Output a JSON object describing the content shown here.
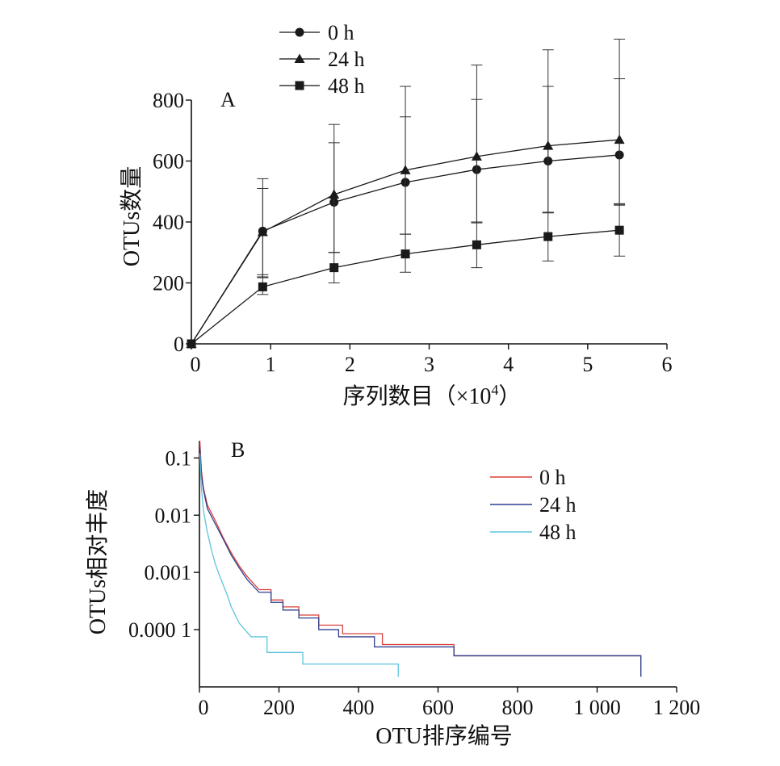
{
  "figure": {
    "panel_a_label": "A",
    "panel_b_label": "B"
  },
  "chart_data": [
    {
      "type": "line",
      "panel": "A",
      "xlabel": "序列数目（×10⁴）",
      "xlabel_parts": {
        "main": "序列数目（×10",
        "sup": "4",
        "end": "）"
      },
      "ylabel": "OTUs数量",
      "xlim": [
        0,
        6
      ],
      "ylim": [
        0,
        800
      ],
      "x_ticks": [
        0,
        1,
        2,
        3,
        4,
        5,
        6
      ],
      "x_tick_labels": [
        "0",
        "1",
        "2",
        "3",
        "4",
        "5",
        "6"
      ],
      "y_ticks": [
        0,
        200,
        400,
        600,
        800
      ],
      "y_tick_labels": [
        "0",
        "200",
        "400",
        "600",
        "800"
      ],
      "grid": false,
      "legend_position": "top-left-outside",
      "x": [
        0,
        0.9,
        1.8,
        2.7,
        3.6,
        4.5,
        5.4
      ],
      "series": [
        {
          "name": "0 h",
          "marker": "circle",
          "color": "#1a1a1a",
          "values": [
            0,
            370,
            465,
            530,
            572,
            600,
            620
          ],
          "err_low": [
            0,
            150,
            165,
            170,
            175,
            170,
            165
          ],
          "err_high": [
            0,
            140,
            195,
            215,
            230,
            245,
            250
          ]
        },
        {
          "name": "24 h",
          "marker": "triangle",
          "color": "#1a1a1a",
          "values": [
            0,
            367,
            490,
            570,
            615,
            650,
            670
          ],
          "err_low": [
            0,
            150,
            190,
            210,
            215,
            220,
            210
          ],
          "err_high": [
            0,
            175,
            230,
            275,
            300,
            315,
            330
          ]
        },
        {
          "name": "48 h",
          "marker": "square",
          "color": "#1a1a1a",
          "values": [
            0,
            187,
            250,
            295,
            325,
            352,
            373
          ],
          "err_low": [
            0,
            25,
            50,
            60,
            75,
            80,
            85
          ],
          "err_high": [
            0,
            40,
            50,
            65,
            75,
            80,
            85
          ]
        }
      ]
    },
    {
      "type": "line",
      "panel": "B",
      "xlabel": "OTU排序编号",
      "ylabel": "OTUs相对丰度",
      "xlim": [
        0,
        1200
      ],
      "ylim": [
        1e-05,
        0.2
      ],
      "y_scale": "log",
      "x_ticks": [
        0,
        200,
        400,
        600,
        800,
        1000,
        1200
      ],
      "x_tick_labels": [
        "0",
        "200",
        "400",
        "600",
        "800",
        "1 000",
        "1 200"
      ],
      "y_ticks": [
        0.1,
        0.01,
        0.001,
        0.0001
      ],
      "y_tick_labels": [
        "0.1",
        "0.01",
        "0.001",
        "0.000 1"
      ],
      "grid": false,
      "legend_position": "top-right",
      "series": [
        {
          "name": "0 h",
          "color": "#d9403a",
          "points": [
            [
              1,
              0.2
            ],
            [
              5,
              0.06
            ],
            [
              10,
              0.03
            ],
            [
              20,
              0.015
            ],
            [
              40,
              0.008
            ],
            [
              60,
              0.004
            ],
            [
              80,
              0.0022
            ],
            [
              100,
              0.0013
            ],
            [
              120,
              0.00085
            ],
            [
              150,
              0.0005
            ],
            [
              180,
              0.00033
            ],
            [
              210,
              0.00025
            ],
            [
              250,
              0.00018
            ],
            [
              300,
              0.00012
            ],
            [
              360,
              8.5e-05
            ],
            [
              460,
              5.5e-05
            ],
            [
              640,
              3.5e-05
            ],
            [
              1110,
              1.5e-05
            ]
          ]
        },
        {
          "name": "24 h",
          "color": "#2f3f8f",
          "points": [
            [
              1,
              0.15
            ],
            [
              5,
              0.05
            ],
            [
              10,
              0.028
            ],
            [
              20,
              0.013
            ],
            [
              40,
              0.007
            ],
            [
              60,
              0.0038
            ],
            [
              80,
              0.002
            ],
            [
              100,
              0.0012
            ],
            [
              120,
              0.00075
            ],
            [
              150,
              0.00045
            ],
            [
              180,
              0.0003
            ],
            [
              210,
              0.00022
            ],
            [
              250,
              0.00016
            ],
            [
              300,
              0.0001
            ],
            [
              350,
              7.5e-05
            ],
            [
              440,
              5e-05
            ],
            [
              640,
              3.5e-05
            ],
            [
              1110,
              1.5e-05
            ]
          ]
        },
        {
          "name": "48 h",
          "color": "#5ec4dd",
          "points": [
            [
              1,
              0.12
            ],
            [
              5,
              0.03
            ],
            [
              10,
              0.012
            ],
            [
              20,
              0.005
            ],
            [
              30,
              0.0025
            ],
            [
              40,
              0.0014
            ],
            [
              50,
              0.0009
            ],
            [
              60,
              0.0006
            ],
            [
              70,
              0.0004
            ],
            [
              80,
              0.00025
            ],
            [
              100,
              0.00013
            ],
            [
              130,
              7.5e-05
            ],
            [
              170,
              4e-05
            ],
            [
              260,
              2.5e-05
            ],
            [
              500,
              1.5e-05
            ]
          ]
        }
      ]
    }
  ]
}
